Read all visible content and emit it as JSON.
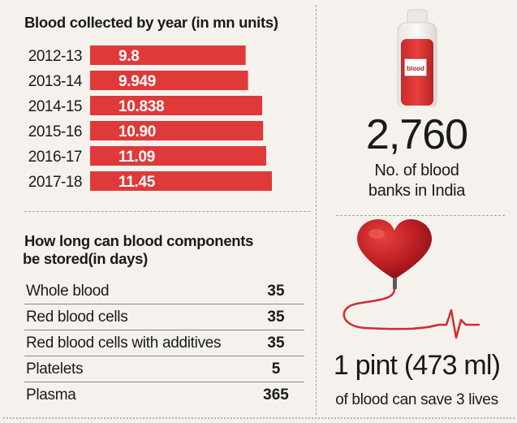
{
  "chart_data": {
    "type": "bar",
    "orientation": "horizontal",
    "title": "Blood collected by year (in mn units)",
    "categories": [
      "2012-13",
      "2013-14",
      "2014-15",
      "2015-16",
      "2016-17",
      "2017-18"
    ],
    "values": [
      9.8,
      9.949,
      10.838,
      10.9,
      11.09,
      11.45
    ],
    "value_labels": [
      "9.8",
      "9.949",
      "10.838",
      "10.90",
      "11.09",
      "11.45"
    ],
    "bar_color": "#e0393a",
    "value_label_color": "#ffffff"
  },
  "storage": {
    "title_line1": "How long can blood components",
    "title_line2": "be stored(in days)",
    "rows": [
      {
        "label": "Whole blood",
        "days": "35"
      },
      {
        "label": "Red blood cells",
        "days": "35"
      },
      {
        "label": "Red blood cells with additives",
        "days": "35"
      },
      {
        "label": "Platelets",
        "days": "5"
      },
      {
        "label": "Plasma",
        "days": "365"
      }
    ]
  },
  "banks": {
    "bag_label": "blood",
    "count": "2,760",
    "label_line1": "No. of blood",
    "label_line2": "banks in India"
  },
  "pint": {
    "headline": "1 pint (473 ml)",
    "subline": "of blood can save 3 lives"
  },
  "icons": [
    "blood-bag-icon",
    "heart-icon",
    "heartbeat-line-icon"
  ]
}
